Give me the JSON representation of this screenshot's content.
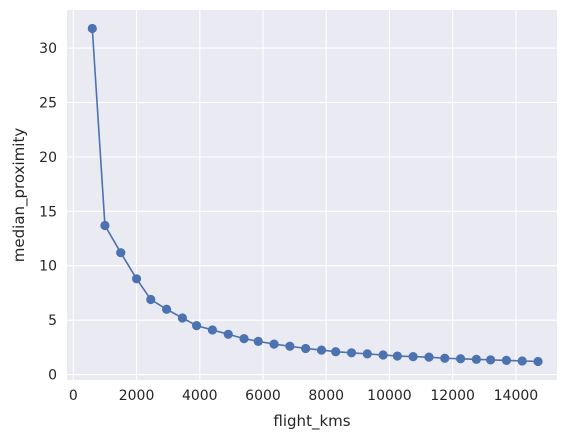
{
  "chart_data": {
    "type": "line",
    "title": "",
    "xlabel": "flight_kms",
    "ylabel": "median_proximity",
    "xlim": [
      -200,
      15300
    ],
    "ylim": [
      -0.5,
      33.5
    ],
    "xticks": [
      0,
      2000,
      4000,
      6000,
      8000,
      10000,
      12000,
      14000
    ],
    "yticks": [
      0,
      5,
      10,
      15,
      20,
      25,
      30
    ],
    "grid": true,
    "legend": "none",
    "series": [
      {
        "color": "#4c72b0",
        "marker": "circle",
        "x": [
          600,
          1000,
          1500,
          2000,
          2450,
          2950,
          3450,
          3900,
          4400,
          4900,
          5400,
          5850,
          6350,
          6850,
          7350,
          7850,
          8300,
          8800,
          9300,
          9800,
          10250,
          10750,
          11250,
          11750,
          12250,
          12750,
          13200,
          13700,
          14200,
          14700
        ],
        "y": [
          31.8,
          13.7,
          11.2,
          8.8,
          6.9,
          6.0,
          5.2,
          4.5,
          4.1,
          3.7,
          3.3,
          3.05,
          2.8,
          2.6,
          2.4,
          2.25,
          2.1,
          2.0,
          1.9,
          1.8,
          1.7,
          1.65,
          1.6,
          1.5,
          1.45,
          1.4,
          1.35,
          1.3,
          1.25,
          1.2
        ]
      }
    ]
  }
}
